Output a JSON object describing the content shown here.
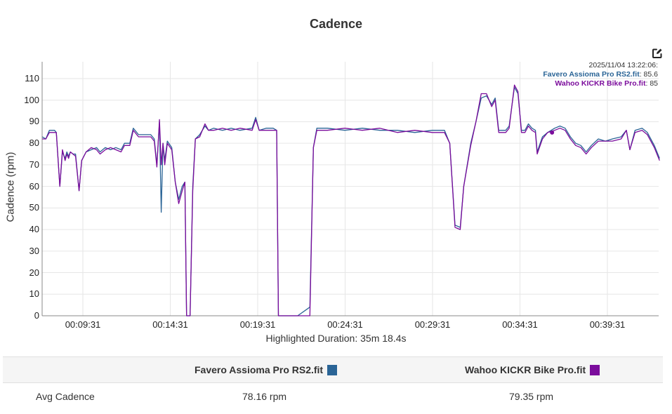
{
  "chart_title": "Cadence",
  "edit_icon": "edit-square-icon",
  "tooltip": {
    "timestamp": "2025/11/04 13:22:06:",
    "series": [
      {
        "name": "Favero Assioma Pro RS2.fit",
        "value": ": 85.6"
      },
      {
        "name": "Wahoo KICKR Bike Pro.fit",
        "value": ": 85"
      }
    ]
  },
  "y_axis_label": "Cadence (rpm)",
  "y_ticks": [
    "110",
    "100",
    "90",
    "80",
    "70",
    "60",
    "50",
    "40",
    "30",
    "20",
    "10",
    "0"
  ],
  "x_ticks": [
    "00:09:31",
    "00:14:31",
    "00:19:31",
    "00:24:31",
    "00:29:31",
    "00:34:31",
    "00:39:31"
  ],
  "highlighted_duration": "Highlighted Duration: 35m 18.4s",
  "colors": {
    "favero": "#2a6496",
    "wahoo": "#7b0c9c",
    "grid": "#e6e6e6",
    "axis": "#888888"
  },
  "table": {
    "headers": [
      "",
      "Favero Assioma Pro RS2.fit",
      "Wahoo KICKR Bike Pro.fit"
    ],
    "rows": [
      {
        "label": "Avg Cadence",
        "favero": "78.16 rpm",
        "wahoo": "79.35 rpm"
      }
    ]
  },
  "chart_data": {
    "type": "line",
    "title": "Cadence",
    "xlabel": "Highlighted Duration: 35m 18.4s",
    "ylabel": "Cadence (rpm)",
    "ylim": [
      0,
      117
    ],
    "x_tick_labels": [
      "00:09:31",
      "00:14:31",
      "00:19:31",
      "00:24:31",
      "00:29:31",
      "00:34:31",
      "00:39:31"
    ],
    "grid": true,
    "x_unit": "minutes_elapsed",
    "series": [
      {
        "name": "Favero Assioma Pro RS2.fit",
        "color": "#2a6496",
        "points": [
          [
            7.2,
            83
          ],
          [
            7.4,
            82
          ],
          [
            7.6,
            86
          ],
          [
            7.9,
            86
          ],
          [
            8.0,
            85
          ],
          [
            8.2,
            60
          ],
          [
            8.35,
            76
          ],
          [
            8.5,
            73
          ],
          [
            8.6,
            76
          ],
          [
            8.7,
            74
          ],
          [
            8.8,
            76
          ],
          [
            8.95,
            75
          ],
          [
            9.1,
            75
          ],
          [
            9.3,
            58
          ],
          [
            9.45,
            72
          ],
          [
            9.7,
            76
          ],
          [
            10.0,
            77
          ],
          [
            10.3,
            78
          ],
          [
            10.5,
            76
          ],
          [
            10.8,
            78
          ],
          [
            11.1,
            77
          ],
          [
            11.4,
            78
          ],
          [
            11.7,
            77
          ],
          [
            11.9,
            80
          ],
          [
            12.2,
            80
          ],
          [
            12.4,
            87
          ],
          [
            12.7,
            84
          ],
          [
            13.1,
            84
          ],
          [
            13.4,
            84
          ],
          [
            13.6,
            82
          ],
          [
            13.75,
            70
          ],
          [
            13.9,
            90
          ],
          [
            14.0,
            48
          ],
          [
            14.1,
            80
          ],
          [
            14.2,
            72
          ],
          [
            14.35,
            81
          ],
          [
            14.6,
            78
          ],
          [
            14.8,
            62
          ],
          [
            15.0,
            54
          ],
          [
            15.2,
            60
          ],
          [
            15.35,
            62
          ],
          [
            15.45,
            0
          ],
          [
            15.65,
            0
          ],
          [
            15.8,
            60
          ],
          [
            15.95,
            82
          ],
          [
            16.2,
            84
          ],
          [
            16.5,
            88
          ],
          [
            16.7,
            86
          ],
          [
            17.0,
            87
          ],
          [
            17.5,
            86
          ],
          [
            18.0,
            87
          ],
          [
            18.5,
            86
          ],
          [
            19.2,
            87
          ],
          [
            19.4,
            92
          ],
          [
            19.6,
            86
          ],
          [
            20.0,
            87
          ],
          [
            20.4,
            87
          ],
          [
            20.6,
            86
          ],
          [
            20.7,
            0
          ],
          [
            21.8,
            0
          ],
          [
            22.5,
            4
          ],
          [
            22.7,
            78
          ],
          [
            22.9,
            87
          ],
          [
            23.5,
            87
          ],
          [
            24.5,
            86
          ],
          [
            25.5,
            87
          ],
          [
            26.5,
            86
          ],
          [
            27.5,
            86
          ],
          [
            28.5,
            85
          ],
          [
            29.5,
            86
          ],
          [
            30.2,
            86
          ],
          [
            30.5,
            80
          ],
          [
            30.8,
            42
          ],
          [
            31.1,
            41
          ],
          [
            31.3,
            60
          ],
          [
            31.7,
            80
          ],
          [
            32.0,
            90
          ],
          [
            32.3,
            101
          ],
          [
            32.6,
            102
          ],
          [
            32.9,
            98
          ],
          [
            33.1,
            101
          ],
          [
            33.3,
            86
          ],
          [
            33.7,
            86
          ],
          [
            33.9,
            88
          ],
          [
            34.2,
            106
          ],
          [
            34.4,
            103
          ],
          [
            34.6,
            86
          ],
          [
            34.8,
            86
          ],
          [
            35.0,
            89
          ],
          [
            35.2,
            87
          ],
          [
            35.4,
            86
          ],
          [
            35.5,
            76
          ],
          [
            35.8,
            83
          ],
          [
            36.1,
            85
          ],
          [
            36.5,
            87
          ],
          [
            36.8,
            88
          ],
          [
            37.1,
            87
          ],
          [
            37.4,
            83
          ],
          [
            37.7,
            80
          ],
          [
            38.0,
            79
          ],
          [
            38.3,
            76
          ],
          [
            38.6,
            79
          ],
          [
            39.0,
            82
          ],
          [
            39.4,
            81
          ],
          [
            39.8,
            82
          ],
          [
            40.3,
            83
          ],
          [
            40.6,
            86
          ],
          [
            40.8,
            77
          ],
          [
            41.1,
            86
          ],
          [
            41.5,
            87
          ],
          [
            41.8,
            85
          ],
          [
            42.2,
            79
          ],
          [
            42.5,
            73
          ]
        ]
      },
      {
        "name": "Wahoo KICKR Bike Pro.fit",
        "color": "#7b0c9c",
        "points": [
          [
            7.2,
            82
          ],
          [
            7.4,
            82
          ],
          [
            7.6,
            85
          ],
          [
            7.9,
            85
          ],
          [
            8.0,
            85
          ],
          [
            8.2,
            60
          ],
          [
            8.35,
            77
          ],
          [
            8.5,
            72
          ],
          [
            8.6,
            75
          ],
          [
            8.7,
            73
          ],
          [
            8.8,
            76
          ],
          [
            8.95,
            75
          ],
          [
            9.1,
            74
          ],
          [
            9.3,
            58
          ],
          [
            9.45,
            72
          ],
          [
            9.7,
            76
          ],
          [
            10.0,
            78
          ],
          [
            10.3,
            77
          ],
          [
            10.5,
            75
          ],
          [
            10.8,
            77
          ],
          [
            11.1,
            78
          ],
          [
            11.4,
            77
          ],
          [
            11.7,
            76
          ],
          [
            11.9,
            79
          ],
          [
            12.2,
            79
          ],
          [
            12.4,
            86
          ],
          [
            12.7,
            83
          ],
          [
            13.1,
            83
          ],
          [
            13.4,
            83
          ],
          [
            13.6,
            81
          ],
          [
            13.75,
            69
          ],
          [
            13.9,
            91
          ],
          [
            14.0,
            70
          ],
          [
            14.1,
            80
          ],
          [
            14.2,
            70
          ],
          [
            14.35,
            80
          ],
          [
            14.6,
            77
          ],
          [
            14.8,
            62
          ],
          [
            15.0,
            52
          ],
          [
            15.2,
            58
          ],
          [
            15.35,
            62
          ],
          [
            15.45,
            0
          ],
          [
            15.65,
            0
          ],
          [
            15.8,
            58
          ],
          [
            15.95,
            82
          ],
          [
            16.2,
            83
          ],
          [
            16.5,
            89
          ],
          [
            16.7,
            86
          ],
          [
            17.0,
            86
          ],
          [
            17.5,
            87
          ],
          [
            18.0,
            86
          ],
          [
            18.5,
            87
          ],
          [
            19.2,
            86
          ],
          [
            19.4,
            91
          ],
          [
            19.6,
            86
          ],
          [
            20.0,
            86
          ],
          [
            20.4,
            86
          ],
          [
            20.6,
            86
          ],
          [
            20.7,
            0
          ],
          [
            21.8,
            0
          ],
          [
            22.5,
            0
          ],
          [
            22.7,
            78
          ],
          [
            22.9,
            86
          ],
          [
            23.5,
            86
          ],
          [
            24.5,
            87
          ],
          [
            25.5,
            86
          ],
          [
            26.5,
            87
          ],
          [
            27.5,
            85
          ],
          [
            28.5,
            86
          ],
          [
            29.5,
            85
          ],
          [
            30.2,
            85
          ],
          [
            30.5,
            80
          ],
          [
            30.8,
            41
          ],
          [
            31.1,
            40
          ],
          [
            31.3,
            60
          ],
          [
            31.7,
            79
          ],
          [
            32.0,
            90
          ],
          [
            32.3,
            103
          ],
          [
            32.6,
            103
          ],
          [
            32.9,
            97
          ],
          [
            33.1,
            100
          ],
          [
            33.3,
            85
          ],
          [
            33.7,
            85
          ],
          [
            33.9,
            87
          ],
          [
            34.2,
            107
          ],
          [
            34.4,
            104
          ],
          [
            34.6,
            85
          ],
          [
            34.8,
            85
          ],
          [
            35.0,
            88
          ],
          [
            35.2,
            86
          ],
          [
            35.4,
            85
          ],
          [
            35.5,
            75
          ],
          [
            35.8,
            82
          ],
          [
            36.1,
            85
          ],
          [
            36.5,
            86
          ],
          [
            36.8,
            87
          ],
          [
            37.1,
            86
          ],
          [
            37.4,
            82
          ],
          [
            37.7,
            79
          ],
          [
            38.0,
            78
          ],
          [
            38.3,
            75
          ],
          [
            38.6,
            78
          ],
          [
            39.0,
            81
          ],
          [
            39.4,
            81
          ],
          [
            39.8,
            81
          ],
          [
            40.3,
            82
          ],
          [
            40.6,
            86
          ],
          [
            40.8,
            77
          ],
          [
            41.1,
            85
          ],
          [
            41.5,
            86
          ],
          [
            41.8,
            84
          ],
          [
            42.2,
            78
          ],
          [
            42.5,
            72
          ]
        ]
      }
    ],
    "highlight_marker": {
      "x": 36.35,
      "series": "Wahoo KICKR Bike Pro.fit",
      "value": 85
    }
  }
}
